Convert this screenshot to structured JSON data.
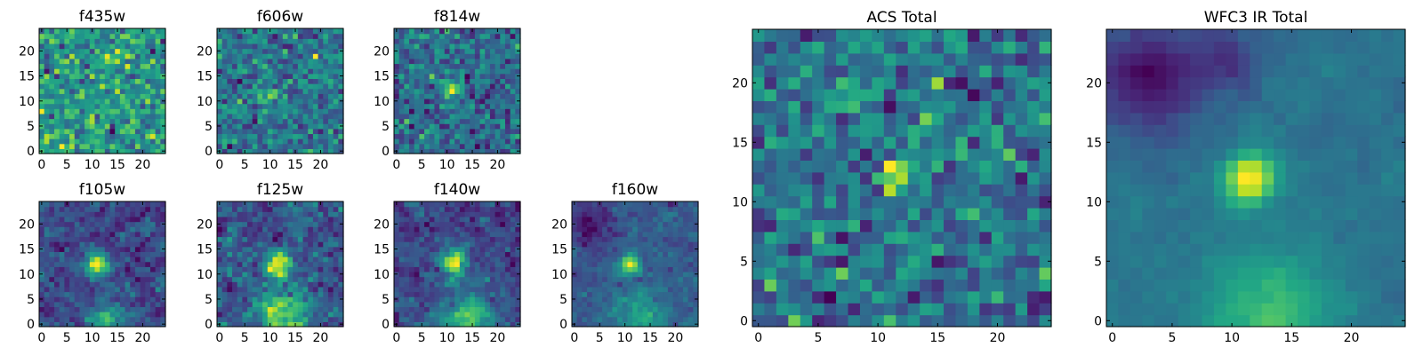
{
  "chart_data": {
    "type": "heatmap",
    "colormap": "viridis",
    "grid_size": 25,
    "xlim": [
      -0.5,
      24.5
    ],
    "ylim": [
      -0.5,
      24.5
    ],
    "xticks": [
      0,
      5,
      10,
      15,
      20
    ],
    "yticks": [
      0,
      5,
      10,
      15,
      20
    ],
    "origin": "lower",
    "note": "pixel values approximated: seeded noise plus the listed sources (data units)",
    "panels": [
      {
        "title": "f435w",
        "seed": 11,
        "noise": 1.0,
        "smooth": 0,
        "sources": []
      },
      {
        "title": "f606w",
        "seed": 23,
        "noise": 1.0,
        "smooth": 0,
        "sources": [
          {
            "x": 9,
            "y": 11,
            "sigma": 1.5,
            "amp": 0.8
          }
        ]
      },
      {
        "title": "f814w",
        "seed": 37,
        "noise": 1.0,
        "smooth": 0,
        "sources": [
          {
            "x": 11,
            "y": 12,
            "sigma": 1.3,
            "amp": 1.5
          }
        ]
      },
      {
        "title": "f105w",
        "seed": 41,
        "noise": 0.8,
        "smooth": 0.3,
        "sources": [
          {
            "x": 11,
            "y": 12,
            "sigma": 1.6,
            "amp": 2.2
          },
          {
            "x": 13,
            "y": 1,
            "sigma": 2.5,
            "amp": 1.2
          }
        ]
      },
      {
        "title": "f125w",
        "seed": 53,
        "noise": 0.8,
        "smooth": 0.3,
        "sources": [
          {
            "x": 11.5,
            "y": 12,
            "sigma": 1.8,
            "amp": 1.8
          },
          {
            "x": 13,
            "y": 2,
            "sigma": 3.5,
            "amp": 1.4
          }
        ]
      },
      {
        "title": "f140w",
        "seed": 67,
        "noise": 0.8,
        "smooth": 0.3,
        "sources": [
          {
            "x": 11.5,
            "y": 12.5,
            "sigma": 1.8,
            "amp": 2.4
          },
          {
            "x": 14,
            "y": 1,
            "sigma": 3.5,
            "amp": 1.6
          }
        ]
      },
      {
        "title": "f160w",
        "seed": 79,
        "noise": 0.7,
        "smooth": 0.3,
        "sources": [
          {
            "x": 11,
            "y": 12,
            "sigma": 1.4,
            "amp": 2.6
          },
          {
            "x": 13,
            "y": 1.5,
            "sigma": 3.5,
            "amp": 1.2
          },
          {
            "x": 3,
            "y": 20,
            "sigma": 3,
            "amp": -1.0
          }
        ]
      },
      {
        "title": "ACS Total",
        "seed": 97,
        "noise": 1.0,
        "smooth": 0,
        "sources": [
          {
            "x": 11.5,
            "y": 12.5,
            "sigma": 0.8,
            "amp": 2.2
          }
        ]
      },
      {
        "title": "WFC3 IR Total",
        "seed": 101,
        "noise": 0.35,
        "smooth": 0.4,
        "sources": [
          {
            "x": 11.5,
            "y": 12,
            "sigma": 1.5,
            "amp": 3.0
          },
          {
            "x": 13,
            "y": 0.5,
            "sigma": 3.5,
            "amp": 1.5
          },
          {
            "x": 3,
            "y": 20.5,
            "sigma": 3.5,
            "amp": -1.6
          },
          {
            "x": 10,
            "y": 22,
            "sigma": 2,
            "amp": -0.9
          }
        ]
      }
    ]
  }
}
